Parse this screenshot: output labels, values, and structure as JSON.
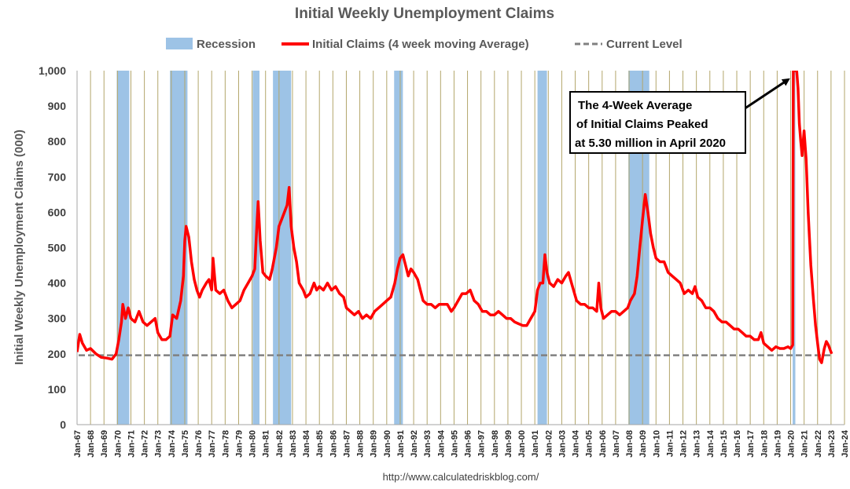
{
  "chart_data": {
    "type": "line",
    "title": "Initial Weekly Unemployment Claims",
    "ylabel": "Initial Weekly Unemployment Claims (000)",
    "xlabel": "",
    "source": "http://www.calculatedriskblog.com/",
    "ylim": [
      0,
      1000
    ],
    "xlim": [
      1967,
      2024
    ],
    "y_ticks": [
      "0",
      "100",
      "200",
      "300",
      "400",
      "500",
      "600",
      "700",
      "800",
      "900",
      "1,000"
    ],
    "y_tick_values": [
      0,
      100,
      200,
      300,
      400,
      500,
      600,
      700,
      800,
      900,
      1000
    ],
    "x_ticks": [
      "Jan-67",
      "Jan-68",
      "Jan-69",
      "Jan-70",
      "Jan-71",
      "Jan-72",
      "Jan-73",
      "Jan-74",
      "Jan-75",
      "Jan-76",
      "Jan-77",
      "Jan-78",
      "Jan-79",
      "Jan-80",
      "Jan-81",
      "Jan-82",
      "Jan-83",
      "Jan-84",
      "Jan-85",
      "Jan-86",
      "Jan-87",
      "Jan-88",
      "Jan-89",
      "Jan-90",
      "Jan-91",
      "Jan-92",
      "Jan-93",
      "Jan-94",
      "Jan-95",
      "Jan-96",
      "Jan-97",
      "Jan-98",
      "Jan-99",
      "Jan-00",
      "Jan-01",
      "Jan-02",
      "Jan-03",
      "Jan-04",
      "Jan-05",
      "Jan-06",
      "Jan-07",
      "Jan-08",
      "Jan-09",
      "Jan-10",
      "Jan-11",
      "Jan-12",
      "Jan-13",
      "Jan-14",
      "Jan-15",
      "Jan-16",
      "Jan-17",
      "Jan-18",
      "Jan-19",
      "Jan-20",
      "Jan-21",
      "Jan-22",
      "Jan-23",
      "Jan-24"
    ],
    "x_tick_years": [
      1967,
      1968,
      1969,
      1970,
      1971,
      1972,
      1973,
      1974,
      1975,
      1976,
      1977,
      1978,
      1979,
      1980,
      1981,
      1982,
      1983,
      1984,
      1985,
      1986,
      1987,
      1988,
      1989,
      1990,
      1991,
      1992,
      1993,
      1994,
      1995,
      1996,
      1997,
      1998,
      1999,
      2000,
      2001,
      2002,
      2003,
      2004,
      2005,
      2006,
      2007,
      2008,
      2009,
      2010,
      2011,
      2012,
      2013,
      2014,
      2015,
      2016,
      2017,
      2018,
      2019,
      2020,
      2021,
      2022,
      2023,
      2024
    ],
    "grid": "vertical",
    "legend": {
      "position": "top",
      "entries": [
        {
          "label": "Recession",
          "kind": "bar",
          "color": "#9dc3e6"
        },
        {
          "label": "Initial Claims (4 week moving Average)",
          "kind": "line",
          "color": "#ff0000"
        },
        {
          "label": "Current Level",
          "kind": "dashed",
          "color": "#808080"
        }
      ]
    },
    "recessions": [
      {
        "start": 1969.95,
        "end": 1970.88
      },
      {
        "start": 1973.9,
        "end": 1975.2
      },
      {
        "start": 1980.05,
        "end": 1980.55
      },
      {
        "start": 1981.55,
        "end": 1982.9
      },
      {
        "start": 1990.55,
        "end": 1991.2
      },
      {
        "start": 2001.2,
        "end": 2001.9
      },
      {
        "start": 2007.95,
        "end": 2009.5
      },
      {
        "start": 2020.15,
        "end": 2020.35
      }
    ],
    "current_level": 196,
    "series": [
      {
        "name": "Initial Claims (4 week moving Average)",
        "color": "#ff0000",
        "points": [
          [
            1967.0,
            205
          ],
          [
            1967.2,
            255
          ],
          [
            1967.4,
            230
          ],
          [
            1967.7,
            210
          ],
          [
            1968.0,
            215
          ],
          [
            1968.4,
            200
          ],
          [
            1968.8,
            190
          ],
          [
            1969.2,
            188
          ],
          [
            1969.6,
            185
          ],
          [
            1969.9,
            200
          ],
          [
            1970.1,
            240
          ],
          [
            1970.3,
            290
          ],
          [
            1970.4,
            340
          ],
          [
            1970.6,
            300
          ],
          [
            1970.8,
            330
          ],
          [
            1971.0,
            300
          ],
          [
            1971.3,
            290
          ],
          [
            1971.6,
            320
          ],
          [
            1971.9,
            290
          ],
          [
            1972.2,
            280
          ],
          [
            1972.5,
            290
          ],
          [
            1972.8,
            300
          ],
          [
            1973.0,
            260
          ],
          [
            1973.3,
            240
          ],
          [
            1973.6,
            240
          ],
          [
            1973.9,
            250
          ],
          [
            1974.1,
            310
          ],
          [
            1974.4,
            300
          ],
          [
            1974.7,
            350
          ],
          [
            1974.9,
            420
          ],
          [
            1975.0,
            520
          ],
          [
            1975.1,
            560
          ],
          [
            1975.3,
            530
          ],
          [
            1975.5,
            460
          ],
          [
            1975.7,
            410
          ],
          [
            1975.9,
            380
          ],
          [
            1976.1,
            360
          ],
          [
            1976.3,
            380
          ],
          [
            1976.6,
            400
          ],
          [
            1976.8,
            410
          ],
          [
            1977.0,
            380
          ],
          [
            1977.1,
            470
          ],
          [
            1977.3,
            380
          ],
          [
            1977.6,
            370
          ],
          [
            1977.9,
            380
          ],
          [
            1978.2,
            350
          ],
          [
            1978.5,
            330
          ],
          [
            1978.8,
            340
          ],
          [
            1979.1,
            350
          ],
          [
            1979.4,
            380
          ],
          [
            1979.7,
            400
          ],
          [
            1980.0,
            420
          ],
          [
            1980.2,
            440
          ],
          [
            1980.35,
            560
          ],
          [
            1980.45,
            630
          ],
          [
            1980.6,
            520
          ],
          [
            1980.8,
            430
          ],
          [
            1981.0,
            420
          ],
          [
            1981.3,
            410
          ],
          [
            1981.5,
            440
          ],
          [
            1981.8,
            500
          ],
          [
            1982.0,
            560
          ],
          [
            1982.2,
            580
          ],
          [
            1982.4,
            600
          ],
          [
            1982.6,
            620
          ],
          [
            1982.75,
            670
          ],
          [
            1982.9,
            560
          ],
          [
            1983.1,
            500
          ],
          [
            1983.3,
            460
          ],
          [
            1983.5,
            400
          ],
          [
            1983.8,
            380
          ],
          [
            1984.0,
            360
          ],
          [
            1984.3,
            370
          ],
          [
            1984.6,
            400
          ],
          [
            1984.8,
            380
          ],
          [
            1985.0,
            390
          ],
          [
            1985.3,
            380
          ],
          [
            1985.6,
            400
          ],
          [
            1985.9,
            380
          ],
          [
            1986.2,
            390
          ],
          [
            1986.5,
            370
          ],
          [
            1986.8,
            360
          ],
          [
            1987.0,
            330
          ],
          [
            1987.3,
            320
          ],
          [
            1987.6,
            310
          ],
          [
            1987.9,
            320
          ],
          [
            1988.2,
            300
          ],
          [
            1988.5,
            310
          ],
          [
            1988.8,
            300
          ],
          [
            1989.1,
            320
          ],
          [
            1989.4,
            330
          ],
          [
            1989.7,
            340
          ],
          [
            1990.0,
            350
          ],
          [
            1990.3,
            360
          ],
          [
            1990.6,
            400
          ],
          [
            1990.8,
            440
          ],
          [
            1991.0,
            470
          ],
          [
            1991.2,
            480
          ],
          [
            1991.4,
            450
          ],
          [
            1991.6,
            420
          ],
          [
            1991.8,
            440
          ],
          [
            1992.0,
            430
          ],
          [
            1992.3,
            410
          ],
          [
            1992.5,
            380
          ],
          [
            1992.7,
            350
          ],
          [
            1993.0,
            340
          ],
          [
            1993.3,
            340
          ],
          [
            1993.6,
            330
          ],
          [
            1993.9,
            340
          ],
          [
            1994.2,
            340
          ],
          [
            1994.5,
            340
          ],
          [
            1994.8,
            320
          ],
          [
            1995.0,
            330
          ],
          [
            1995.3,
            350
          ],
          [
            1995.6,
            370
          ],
          [
            1995.9,
            370
          ],
          [
            1996.2,
            380
          ],
          [
            1996.5,
            350
          ],
          [
            1996.8,
            340
          ],
          [
            1997.1,
            320
          ],
          [
            1997.4,
            320
          ],
          [
            1997.7,
            310
          ],
          [
            1998.0,
            310
          ],
          [
            1998.3,
            320
          ],
          [
            1998.6,
            310
          ],
          [
            1998.9,
            300
          ],
          [
            1999.2,
            300
          ],
          [
            1999.5,
            290
          ],
          [
            1999.8,
            285
          ],
          [
            2000.1,
            280
          ],
          [
            2000.4,
            280
          ],
          [
            2000.7,
            300
          ],
          [
            2001.0,
            320
          ],
          [
            2001.2,
            380
          ],
          [
            2001.4,
            400
          ],
          [
            2001.6,
            400
          ],
          [
            2001.75,
            480
          ],
          [
            2001.9,
            430
          ],
          [
            2002.1,
            400
          ],
          [
            2002.4,
            390
          ],
          [
            2002.7,
            410
          ],
          [
            2003.0,
            400
          ],
          [
            2003.3,
            420
          ],
          [
            2003.5,
            430
          ],
          [
            2003.8,
            390
          ],
          [
            2004.1,
            350
          ],
          [
            2004.4,
            340
          ],
          [
            2004.7,
            340
          ],
          [
            2005.0,
            330
          ],
          [
            2005.3,
            330
          ],
          [
            2005.6,
            320
          ],
          [
            2005.75,
            400
          ],
          [
            2005.9,
            330
          ],
          [
            2006.1,
            300
          ],
          [
            2006.4,
            310
          ],
          [
            2006.7,
            320
          ],
          [
            2007.0,
            320
          ],
          [
            2007.3,
            310
          ],
          [
            2007.6,
            320
          ],
          [
            2007.9,
            330
          ],
          [
            2008.1,
            350
          ],
          [
            2008.4,
            370
          ],
          [
            2008.6,
            420
          ],
          [
            2008.8,
            500
          ],
          [
            2009.0,
            580
          ],
          [
            2009.2,
            650
          ],
          [
            2009.4,
            600
          ],
          [
            2009.6,
            540
          ],
          [
            2009.8,
            500
          ],
          [
            2010.0,
            470
          ],
          [
            2010.3,
            460
          ],
          [
            2010.6,
            460
          ],
          [
            2010.9,
            430
          ],
          [
            2011.2,
            420
          ],
          [
            2011.5,
            410
          ],
          [
            2011.8,
            400
          ],
          [
            2012.1,
            370
          ],
          [
            2012.4,
            380
          ],
          [
            2012.7,
            370
          ],
          [
            2012.9,
            390
          ],
          [
            2013.1,
            360
          ],
          [
            2013.4,
            350
          ],
          [
            2013.7,
            330
          ],
          [
            2014.0,
            330
          ],
          [
            2014.3,
            320
          ],
          [
            2014.6,
            300
          ],
          [
            2014.9,
            290
          ],
          [
            2015.2,
            290
          ],
          [
            2015.5,
            280
          ],
          [
            2015.8,
            270
          ],
          [
            2016.1,
            270
          ],
          [
            2016.4,
            260
          ],
          [
            2016.7,
            250
          ],
          [
            2017.0,
            250
          ],
          [
            2017.3,
            240
          ],
          [
            2017.6,
            240
          ],
          [
            2017.8,
            260
          ],
          [
            2018.0,
            230
          ],
          [
            2018.3,
            220
          ],
          [
            2018.6,
            210
          ],
          [
            2018.9,
            220
          ],
          [
            2019.2,
            215
          ],
          [
            2019.5,
            215
          ],
          [
            2019.8,
            220
          ],
          [
            2020.0,
            215
          ],
          [
            2020.15,
            225
          ],
          [
            2020.2,
            1000
          ],
          [
            2020.45,
            1000
          ],
          [
            2020.55,
            950
          ],
          [
            2020.65,
            850
          ],
          [
            2020.75,
            800
          ],
          [
            2020.85,
            760
          ],
          [
            2021.0,
            830
          ],
          [
            2021.15,
            750
          ],
          [
            2021.3,
            600
          ],
          [
            2021.5,
            450
          ],
          [
            2021.7,
            350
          ],
          [
            2021.85,
            280
          ],
          [
            2022.0,
            230
          ],
          [
            2022.15,
            185
          ],
          [
            2022.3,
            175
          ],
          [
            2022.5,
            215
          ],
          [
            2022.65,
            235
          ],
          [
            2022.8,
            225
          ],
          [
            2022.95,
            210
          ],
          [
            2023.05,
            200
          ]
        ]
      }
    ],
    "annotation": {
      "lines": [
        "The 4-Week Average",
        "of Initial Claims Peaked",
        "at 5.30 million in April 2020"
      ],
      "arrow_to": [
        2020.0,
        1000
      ]
    }
  }
}
